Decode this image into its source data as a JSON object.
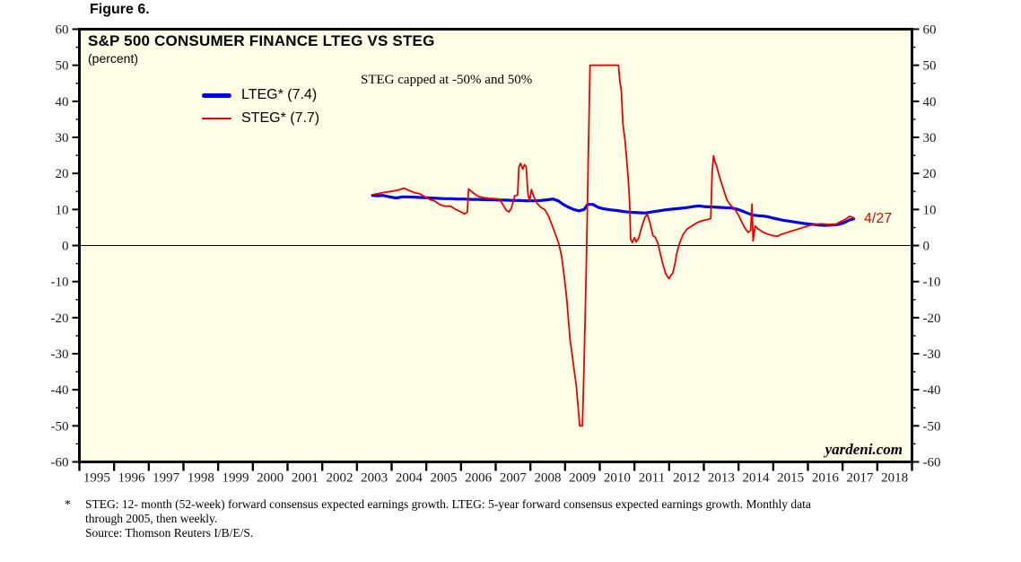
{
  "figure_label": "Figure 6.",
  "colors": {
    "plot_background": "#fffee6",
    "frame": "#000000",
    "lteg_blue": "#0000e6",
    "steg_red": "#ee0000",
    "axis_text": "#1a1a1a"
  },
  "chart": {
    "title": "S&P 500 CONSUMER FINANCE LTEG VS STEG",
    "subtitle": "(percent)",
    "annotation": "STEG capped at -50% and 50%",
    "end_label": "4/27",
    "watermark": "yardeni.com",
    "legend": [
      {
        "label": "LTEG* (7.4)",
        "color": "#0000e6"
      },
      {
        "label": "STEG* (7.7)",
        "color": "#ee0000"
      }
    ]
  },
  "footnote": {
    "marker": "*",
    "line1": "STEG: 12- month (52-week) forward consensus expected earnings growth. LTEG: 5-year forward consensus expected earnings growth. Monthly data",
    "line2": "through 2005, then weekly.",
    "line3": "Source: Thomson Reuters I/B/E/S."
  },
  "chart_data": {
    "type": "line",
    "title": "S&P 500 CONSUMER FINANCE LTEG VS STEG",
    "ylabel": "percent",
    "ylim": [
      -60,
      60
    ],
    "ytick_major": 10,
    "ytick_minor": 5,
    "xlim": [
      1995,
      2019
    ],
    "x_years": [
      1995,
      1996,
      1997,
      1998,
      1999,
      2000,
      2001,
      2002,
      2003,
      2004,
      2005,
      2006,
      2007,
      2008,
      2009,
      2010,
      2011,
      2012,
      2013,
      2014,
      2015,
      2016,
      2017,
      2018
    ],
    "grid": false,
    "zero_line": true,
    "legend_position": "top-left-inside",
    "note": "STEG capped at -50% and 50%; series begin mid-2003 and end 4/27 (April 2017)",
    "series": [
      {
        "name": "LTEG* (7.4)",
        "color": "#0000e6",
        "width": 3.2,
        "points": [
          [
            2003.45,
            13.9
          ],
          [
            2003.6,
            13.8
          ],
          [
            2003.75,
            13.9
          ],
          [
            2003.9,
            13.6
          ],
          [
            2004.05,
            13.3
          ],
          [
            2004.15,
            13.2
          ],
          [
            2004.3,
            13.5
          ],
          [
            2004.5,
            13.5
          ],
          [
            2004.7,
            13.4
          ],
          [
            2004.9,
            13.3
          ],
          [
            2005.1,
            13.2
          ],
          [
            2005.3,
            13.1
          ],
          [
            2005.5,
            13.0
          ],
          [
            2005.7,
            13.0
          ],
          [
            2005.9,
            12.9
          ],
          [
            2006.1,
            12.9
          ],
          [
            2006.3,
            12.8
          ],
          [
            2006.5,
            12.8
          ],
          [
            2006.7,
            12.7
          ],
          [
            2006.9,
            12.7
          ],
          [
            2007.1,
            12.6
          ],
          [
            2007.3,
            12.6
          ],
          [
            2007.5,
            12.5
          ],
          [
            2007.7,
            12.5
          ],
          [
            2007.9,
            12.4
          ],
          [
            2008.1,
            12.4
          ],
          [
            2008.3,
            12.5
          ],
          [
            2008.5,
            12.7
          ],
          [
            2008.65,
            12.9
          ],
          [
            2008.8,
            12.4
          ],
          [
            2008.95,
            11.4
          ],
          [
            2009.1,
            10.6
          ],
          [
            2009.25,
            10.0
          ],
          [
            2009.4,
            9.6
          ],
          [
            2009.55,
            10.0
          ],
          [
            2009.65,
            11.4
          ],
          [
            2009.8,
            11.4
          ],
          [
            2009.95,
            10.6
          ],
          [
            2010.1,
            10.2
          ],
          [
            2010.3,
            9.9
          ],
          [
            2010.5,
            9.7
          ],
          [
            2010.7,
            9.4
          ],
          [
            2010.9,
            9.2
          ],
          [
            2011.1,
            9.1
          ],
          [
            2011.3,
            9.0
          ],
          [
            2011.5,
            9.3
          ],
          [
            2011.7,
            9.6
          ],
          [
            2011.9,
            9.9
          ],
          [
            2012.1,
            10.1
          ],
          [
            2012.3,
            10.3
          ],
          [
            2012.5,
            10.5
          ],
          [
            2012.7,
            10.8
          ],
          [
            2012.85,
            11.0
          ],
          [
            2013.0,
            10.8
          ],
          [
            2013.2,
            10.7
          ],
          [
            2013.4,
            10.6
          ],
          [
            2013.6,
            10.5
          ],
          [
            2013.8,
            10.4
          ],
          [
            2013.95,
            10.1
          ],
          [
            2014.1,
            9.6
          ],
          [
            2014.25,
            9.0
          ],
          [
            2014.4,
            8.5
          ],
          [
            2014.55,
            8.3
          ],
          [
            2014.7,
            8.2
          ],
          [
            2014.85,
            8.0
          ],
          [
            2015.0,
            7.6
          ],
          [
            2015.15,
            7.3
          ],
          [
            2015.3,
            7.0
          ],
          [
            2015.5,
            6.7
          ],
          [
            2015.7,
            6.4
          ],
          [
            2015.9,
            6.1
          ],
          [
            2016.1,
            5.9
          ],
          [
            2016.3,
            5.7
          ],
          [
            2016.5,
            5.6
          ],
          [
            2016.7,
            5.7
          ],
          [
            2016.85,
            5.8
          ],
          [
            2017.0,
            6.2
          ],
          [
            2017.1,
            6.6
          ],
          [
            2017.2,
            7.1
          ],
          [
            2017.32,
            7.4
          ]
        ]
      },
      {
        "name": "STEG* (7.7)",
        "color": "#ee0000",
        "width": 1.8,
        "points": [
          [
            2003.45,
            14.1
          ],
          [
            2003.6,
            14.4
          ],
          [
            2003.75,
            14.7
          ],
          [
            2003.9,
            14.9
          ],
          [
            2004.05,
            15.1
          ],
          [
            2004.2,
            15.4
          ],
          [
            2004.35,
            15.9
          ],
          [
            2004.5,
            15.3
          ],
          [
            2004.65,
            14.7
          ],
          [
            2004.8,
            14.4
          ],
          [
            2004.95,
            13.6
          ],
          [
            2005.1,
            12.8
          ],
          [
            2005.25,
            12.3
          ],
          [
            2005.4,
            11.3
          ],
          [
            2005.55,
            10.9
          ],
          [
            2005.7,
            10.9
          ],
          [
            2005.85,
            10.0
          ],
          [
            2006.0,
            9.3
          ],
          [
            2006.1,
            8.8
          ],
          [
            2006.18,
            9.2
          ],
          [
            2006.22,
            15.7
          ],
          [
            2006.35,
            14.6
          ],
          [
            2006.5,
            13.6
          ],
          [
            2006.65,
            13.3
          ],
          [
            2006.8,
            13.1
          ],
          [
            2006.95,
            13.0
          ],
          [
            2007.1,
            12.9
          ],
          [
            2007.2,
            11.5
          ],
          [
            2007.3,
            9.8
          ],
          [
            2007.38,
            9.3
          ],
          [
            2007.45,
            10.3
          ],
          [
            2007.55,
            13.8
          ],
          [
            2007.63,
            14.0
          ],
          [
            2007.67,
            21.8
          ],
          [
            2007.72,
            22.8
          ],
          [
            2007.78,
            21.2
          ],
          [
            2007.83,
            22.4
          ],
          [
            2007.88,
            21.8
          ],
          [
            2007.93,
            14.2
          ],
          [
            2007.98,
            12.4
          ],
          [
            2008.03,
            15.5
          ],
          [
            2008.1,
            13.6
          ],
          [
            2008.2,
            11.6
          ],
          [
            2008.3,
            10.6
          ],
          [
            2008.42,
            9.9
          ],
          [
            2008.52,
            8.2
          ],
          [
            2008.62,
            5.8
          ],
          [
            2008.72,
            3.2
          ],
          [
            2008.82,
            0.5
          ],
          [
            2008.9,
            -3.0
          ],
          [
            2008.98,
            -9.0
          ],
          [
            2009.05,
            -15.0
          ],
          [
            2009.1,
            -21.0
          ],
          [
            2009.15,
            -26.5
          ],
          [
            2009.2,
            -30.0
          ],
          [
            2009.26,
            -34.5
          ],
          [
            2009.32,
            -38.5
          ],
          [
            2009.38,
            -45.0
          ],
          [
            2009.42,
            -50.0
          ],
          [
            2009.5,
            -50.0
          ],
          [
            2009.56,
            -28.0
          ],
          [
            2009.62,
            -2.0
          ],
          [
            2009.68,
            30.0
          ],
          [
            2009.72,
            50.0
          ],
          [
            2010.0,
            50.0
          ],
          [
            2010.3,
            50.0
          ],
          [
            2010.54,
            50.0
          ],
          [
            2010.58,
            45.5
          ],
          [
            2010.62,
            43.0
          ],
          [
            2010.67,
            33.5
          ],
          [
            2010.72,
            30.0
          ],
          [
            2010.77,
            24.5
          ],
          [
            2010.82,
            18.5
          ],
          [
            2010.86,
            12.0
          ],
          [
            2010.89,
            1.8
          ],
          [
            2010.94,
            0.8
          ],
          [
            2011.0,
            2.2
          ],
          [
            2011.05,
            1.0
          ],
          [
            2011.12,
            2.0
          ],
          [
            2011.2,
            4.8
          ],
          [
            2011.3,
            7.8
          ],
          [
            2011.37,
            8.7
          ],
          [
            2011.45,
            6.2
          ],
          [
            2011.53,
            2.8
          ],
          [
            2011.6,
            2.3
          ],
          [
            2011.68,
            0.5
          ],
          [
            2011.75,
            -2.5
          ],
          [
            2011.82,
            -5.2
          ],
          [
            2011.9,
            -7.8
          ],
          [
            2011.96,
            -8.8
          ],
          [
            2012.0,
            -9.2
          ],
          [
            2012.05,
            -8.2
          ],
          [
            2012.1,
            -7.8
          ],
          [
            2012.16,
            -5.5
          ],
          [
            2012.22,
            -2.2
          ],
          [
            2012.3,
            0.6
          ],
          [
            2012.4,
            3.0
          ],
          [
            2012.5,
            4.4
          ],
          [
            2012.6,
            5.1
          ],
          [
            2012.7,
            5.7
          ],
          [
            2012.8,
            6.3
          ],
          [
            2012.9,
            6.7
          ],
          [
            2013.0,
            7.0
          ],
          [
            2013.1,
            7.2
          ],
          [
            2013.2,
            7.5
          ],
          [
            2013.24,
            20.5
          ],
          [
            2013.28,
            24.9
          ],
          [
            2013.32,
            23.2
          ],
          [
            2013.37,
            22.0
          ],
          [
            2013.42,
            20.2
          ],
          [
            2013.47,
            18.5
          ],
          [
            2013.52,
            17.0
          ],
          [
            2013.57,
            15.5
          ],
          [
            2013.62,
            14.0
          ],
          [
            2013.67,
            12.6
          ],
          [
            2013.74,
            11.6
          ],
          [
            2013.81,
            10.8
          ],
          [
            2013.9,
            10.0
          ],
          [
            2014.0,
            8.4
          ],
          [
            2014.1,
            6.4
          ],
          [
            2014.2,
            4.6
          ],
          [
            2014.28,
            3.6
          ],
          [
            2014.35,
            4.2
          ],
          [
            2014.39,
            11.5
          ],
          [
            2014.42,
            1.3
          ],
          [
            2014.48,
            5.4
          ],
          [
            2014.55,
            4.7
          ],
          [
            2014.63,
            4.2
          ],
          [
            2014.73,
            3.6
          ],
          [
            2014.83,
            3.2
          ],
          [
            2014.93,
            2.9
          ],
          [
            2015.03,
            2.7
          ],
          [
            2015.13,
            2.6
          ],
          [
            2015.23,
            3.1
          ],
          [
            2015.33,
            3.4
          ],
          [
            2015.43,
            3.7
          ],
          [
            2015.53,
            4.0
          ],
          [
            2015.63,
            4.3
          ],
          [
            2015.73,
            4.6
          ],
          [
            2015.83,
            4.9
          ],
          [
            2015.93,
            5.2
          ],
          [
            2016.03,
            5.5
          ],
          [
            2016.13,
            5.7
          ],
          [
            2016.23,
            5.9
          ],
          [
            2016.33,
            6.0
          ],
          [
            2016.43,
            6.0
          ],
          [
            2016.53,
            5.9
          ],
          [
            2016.63,
            5.8
          ],
          [
            2016.73,
            5.7
          ],
          [
            2016.83,
            6.0
          ],
          [
            2016.93,
            6.6
          ],
          [
            2017.03,
            7.0
          ],
          [
            2017.13,
            7.6
          ],
          [
            2017.2,
            8.1
          ],
          [
            2017.27,
            7.9
          ],
          [
            2017.32,
            7.7
          ]
        ]
      }
    ]
  }
}
